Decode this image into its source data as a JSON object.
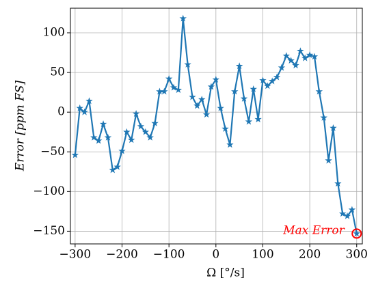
{
  "chart_data": {
    "type": "line",
    "xlabel": "Ω [°/s]",
    "ylabel": "Error [ppm FS]",
    "x": [
      -300,
      -290,
      -280,
      -270,
      -260,
      -250,
      -240,
      -230,
      -220,
      -210,
      -200,
      -190,
      -180,
      -170,
      -160,
      -150,
      -140,
      -130,
      -120,
      -110,
      -100,
      -90,
      -80,
      -70,
      -60,
      -50,
      -40,
      -30,
      -20,
      -10,
      0,
      10,
      20,
      30,
      40,
      50,
      60,
      70,
      80,
      90,
      100,
      110,
      120,
      130,
      140,
      150,
      160,
      170,
      180,
      190,
      200,
      210,
      220,
      230,
      240,
      250,
      260,
      270,
      280,
      290,
      300
    ],
    "series": [
      {
        "color": "#1f77b4",
        "values": [
          -54,
          5,
          0,
          14,
          -32,
          -36,
          -15,
          -32,
          -73,
          -69,
          -49,
          -25,
          -35,
          -2,
          -18,
          -25,
          -32,
          -14,
          26,
          26,
          42,
          31,
          28,
          118,
          60,
          19,
          8,
          16,
          -3,
          32,
          41,
          5,
          -21,
          -41,
          26,
          58,
          17,
          -12,
          29,
          -9,
          40,
          33,
          39,
          44,
          56,
          71,
          65,
          59,
          77,
          68,
          72,
          70,
          26,
          -7,
          -61,
          -20,
          -90,
          -128,
          -131,
          -123,
          -153
        ]
      }
    ],
    "xlim": [
      -310,
      312
    ],
    "ylim": [
      -166,
      131
    ],
    "xticks": [
      {
        "value": -300,
        "label": "−300"
      },
      {
        "value": -200,
        "label": "−200"
      },
      {
        "value": -100,
        "label": "−100"
      },
      0,
      100,
      200,
      300
    ],
    "yticks": [
      {
        "value": -150,
        "label": "−150"
      },
      {
        "value": -100,
        "label": "−100"
      },
      {
        "value": -50,
        "label": "−50"
      },
      0,
      50,
      100
    ],
    "grid": true,
    "annotation": {
      "text": "Max Error",
      "x": 300,
      "y": -153,
      "color": "#ff0000"
    }
  }
}
